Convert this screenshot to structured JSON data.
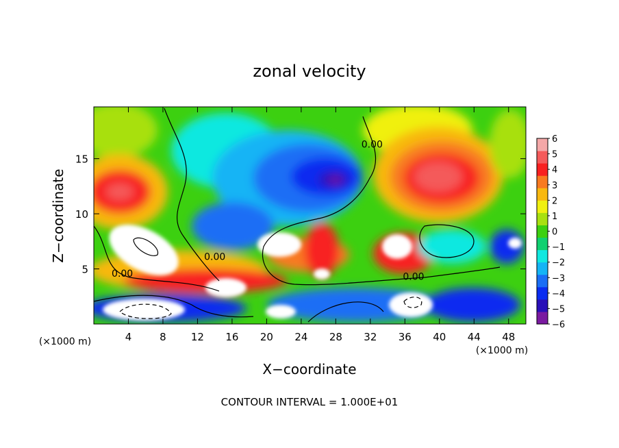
{
  "chart_data": {
    "type": "heatmap",
    "title": "zonal velocity",
    "xlabel": "X−coordinate",
    "ylabel": "Z−coordinate",
    "x_unit_left": "(×1000 m)",
    "x_unit_right": "(×1000 m)",
    "xlim": [
      0,
      50
    ],
    "ylim": [
      0,
      19.7
    ],
    "x_ticks": [
      4,
      8,
      12,
      16,
      20,
      24,
      28,
      32,
      36,
      40,
      44,
      48
    ],
    "x_tick_labels": [
      "4",
      "8",
      "12",
      "16",
      "20",
      "24",
      "28",
      "32",
      "36",
      "40",
      "44",
      "48"
    ],
    "y_ticks": [
      5,
      10,
      15
    ],
    "y_tick_labels": [
      "5",
      "10",
      "15"
    ],
    "colorbar": {
      "min": -6,
      "max": 6,
      "ticks": [
        6,
        5,
        4,
        3,
        2,
        1,
        0,
        -1,
        -2,
        -3,
        -4,
        -5,
        -6
      ],
      "tick_labels": [
        "6",
        "5",
        "4",
        "3",
        "2",
        "1",
        "0",
        "−1",
        "−2",
        "−3",
        "−4",
        "−5",
        "−6"
      ],
      "colors": [
        "#7a1aa0",
        "#2a10b8",
        "#0a2cf0",
        "#1a6ef5",
        "#14b4f5",
        "#10e8e0",
        "#10d070",
        "#3cd010",
        "#a8e010",
        "#f0f010",
        "#f8b810",
        "#f87a20",
        "#f82020",
        "#f45a5a",
        "#f4a8a8"
      ]
    },
    "out_of_range_color": "#ffffff",
    "features": [
      {
        "name": "positive core upper left",
        "x": 4.5,
        "z": 11.8,
        "value": 5.5,
        "sx": 3.0,
        "sz": 1.6
      },
      {
        "name": "positive core upper right",
        "x": 39.5,
        "z": 13.0,
        "value": 6.0,
        "sx": 5.0,
        "sz": 2.5
      },
      {
        "name": "negative core",
        "x": 28.0,
        "z": 13.5,
        "value": -5.5,
        "sx": 2.5,
        "sz": 1.3
      },
      {
        "name": "negative region center",
        "x": 23.0,
        "z": 12.0,
        "value": -3.5,
        "sx": 5.0,
        "sz": 3.0
      }
    ],
    "contour_labels": [
      {
        "text": "0.00",
        "x": 3.3,
        "z": 4.3
      },
      {
        "text": "0.00",
        "x": 14.0,
        "z": 5.8
      },
      {
        "text": "0.00",
        "x": 32.2,
        "z": 16.0
      },
      {
        "text": "0.00",
        "x": 37.0,
        "z": 4.0
      }
    ],
    "contour_interval_text": "CONTOUR INTERVAL = 1.000E+01"
  }
}
